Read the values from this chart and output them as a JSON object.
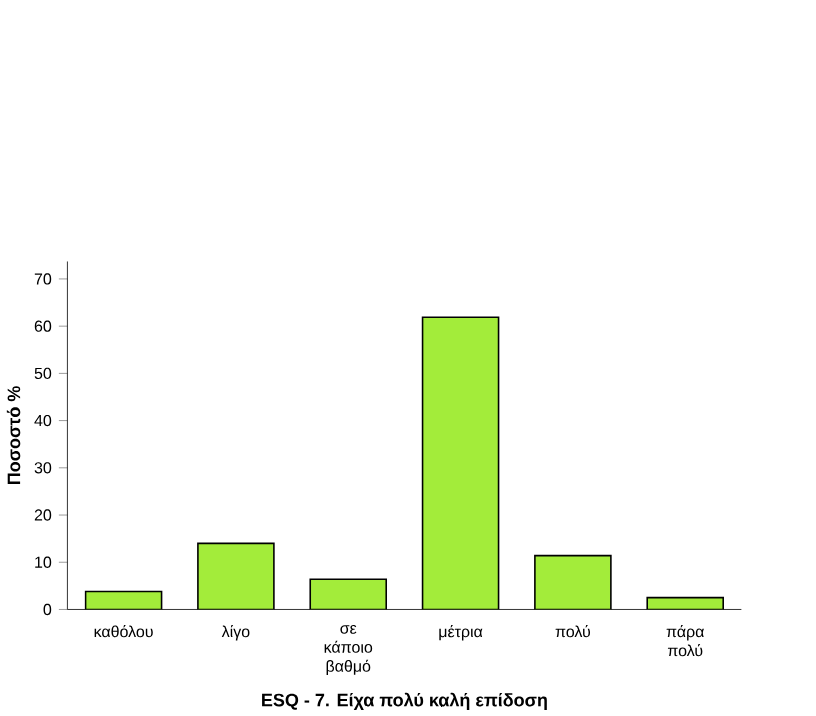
{
  "chart_data": {
    "type": "bar",
    "xlabel": "ESQ - 7. Είχα πολύ καλή επίδοση",
    "ylabel": "Ποσοστό %",
    "categories": [
      "καθόλου",
      "λίγο",
      "σε κάποιο βαθμό",
      "μέτρια",
      "πολύ",
      "πάρα πολύ"
    ],
    "values": [
      3.8,
      14,
      6.4,
      61.9,
      11.4,
      2.5
    ],
    "color": "#a3ec3a",
    "ylim": [
      0,
      73.7
    ],
    "yticks": [
      0,
      10,
      20,
      30,
      40,
      50,
      60,
      70
    ]
  }
}
